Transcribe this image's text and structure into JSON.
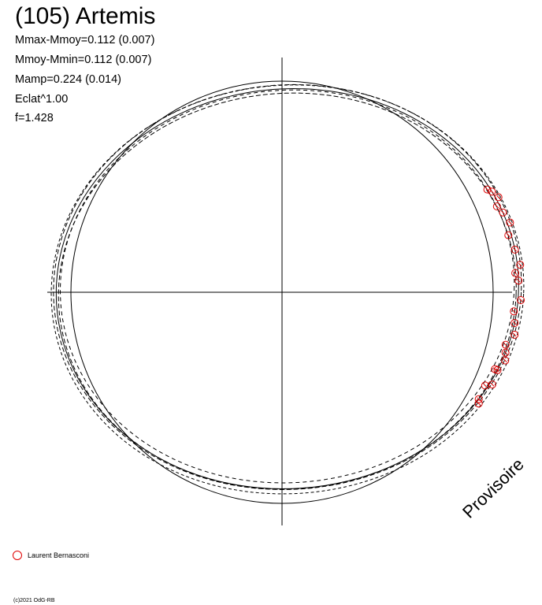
{
  "title": "(105) Artemis",
  "stats": [
    "Mmax-Mmoy=0.112 (0.007)",
    "Mmoy-Mmin=0.112 (0.007)",
    "Mamp=0.224 (0.014)",
    "Eclat^1.00",
    "f=1.428"
  ],
  "watermark": "Provisoire",
  "copyright": "(c)2021 OdG-RB",
  "colors": {
    "observer": "#e00000",
    "line": "#000000",
    "background": "#ffffff"
  },
  "chart_data": {
    "type": "polar lightcurve plot",
    "axes": "cross axes through center, no tick labels",
    "reference_circle": true,
    "series": [
      {
        "name": "Laurent Bernasconi",
        "marker": "open-circle",
        "color": "#e00000",
        "approx_polar_angles_deg": [
          28,
          27,
          25,
          23,
          21,
          18,
          15,
          11,
          7,
          5,
          3,
          -2,
          -5,
          -8,
          -11,
          -14,
          -16,
          -18,
          -21,
          -21,
          -25,
          -26,
          -30,
          -31
        ]
      }
    ],
    "model_curves": {
      "solid": 1,
      "dashed": 4
    },
    "legend": [
      {
        "label": "Laurent Bernasconi",
        "marker": "open-circle",
        "color": "#e00000"
      }
    ]
  }
}
